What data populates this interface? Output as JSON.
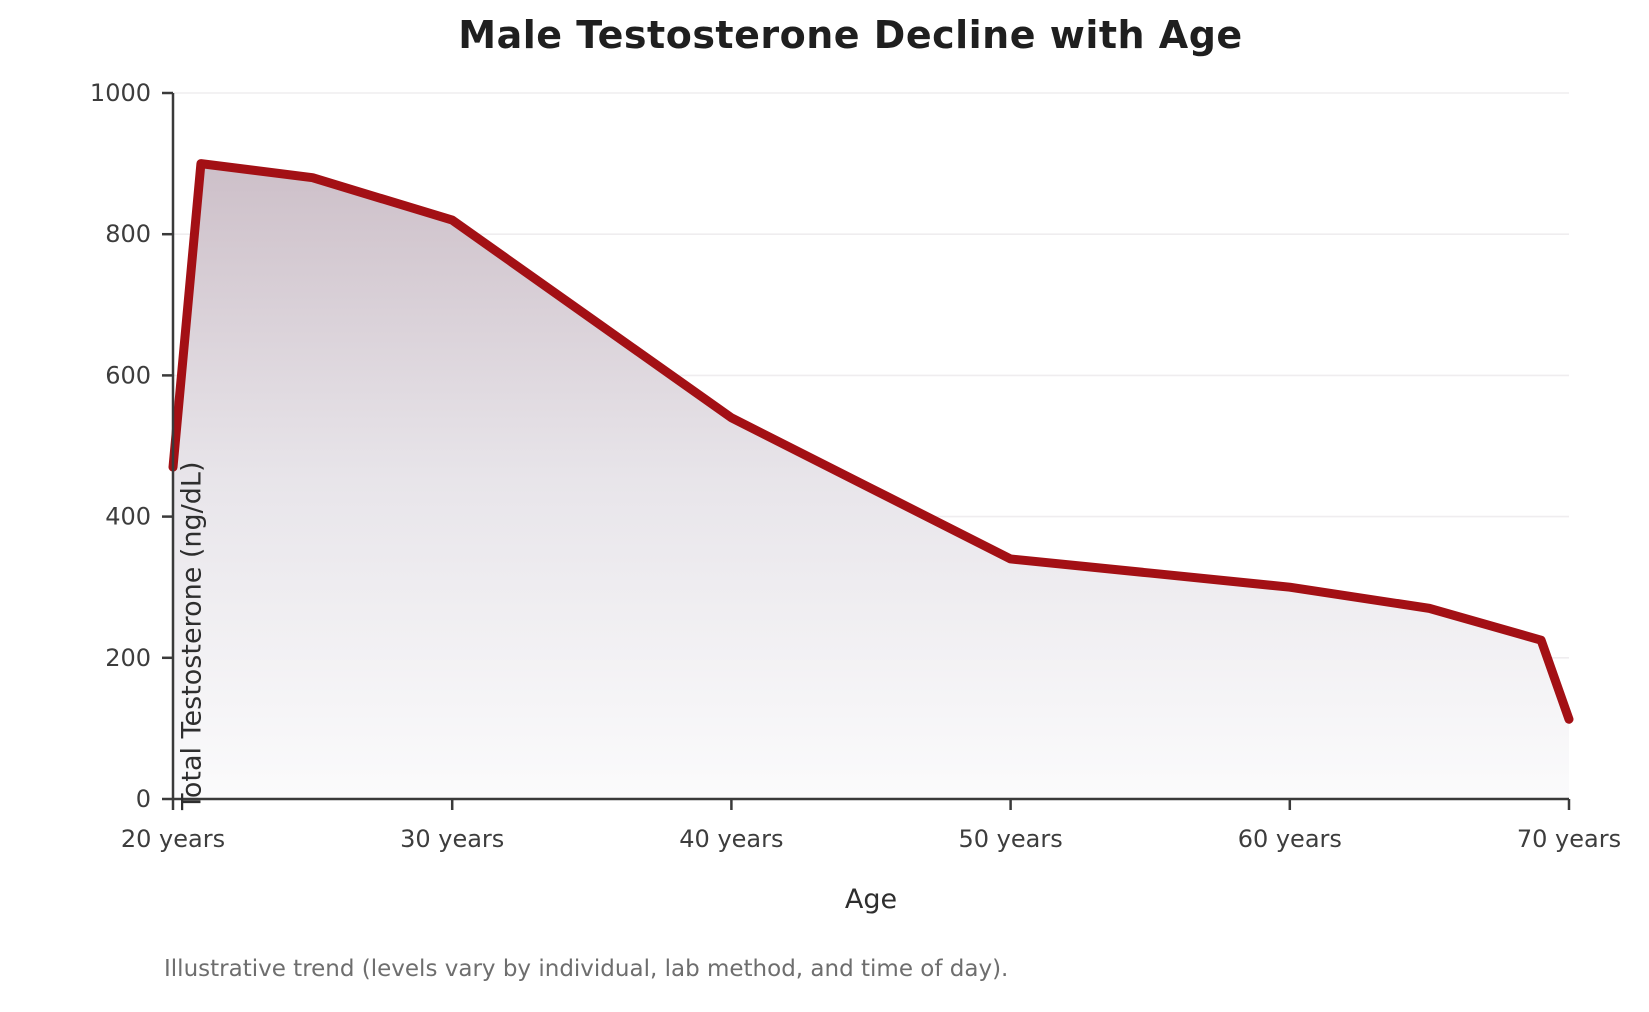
{
  "chart_data": {
    "type": "area",
    "title": "Male Testosterone Decline with Age",
    "xlabel": "Age",
    "ylabel": "Total Testosterone (ng/dL)",
    "note": "Illustrative trend (levels vary by individual, lab method, and time of day).",
    "x": [
      20,
      21,
      25,
      30,
      35,
      40,
      45,
      50,
      55,
      60,
      65,
      69,
      70
    ],
    "values": [
      470,
      900,
      880,
      820,
      680,
      540,
      440,
      340,
      320,
      300,
      270,
      225,
      113
    ],
    "x_ticks": [
      20,
      30,
      40,
      50,
      60,
      70
    ],
    "x_tick_labels": [
      "20 years",
      "30 years",
      "40 years",
      "50 years",
      "60 years",
      "70 years"
    ],
    "y_ticks": [
      0,
      200,
      400,
      600,
      800,
      1000
    ],
    "xlim": [
      20,
      70
    ],
    "ylim": [
      0,
      1000
    ],
    "grid": "horizontal-only",
    "legend": "none",
    "colors": {
      "line": "#a31015",
      "area_top": "#c7b7c1",
      "area_mid": "#e8e5ea",
      "area_bottom": "#fbfbfc",
      "axis": "#3a3a3a",
      "grid": "#efedef",
      "title": "#1f1f1f",
      "tick_label": "#3d3d3d",
      "axis_label": "#2e2e2e",
      "note": "#6e6e6e",
      "background": "#ffffff"
    }
  }
}
